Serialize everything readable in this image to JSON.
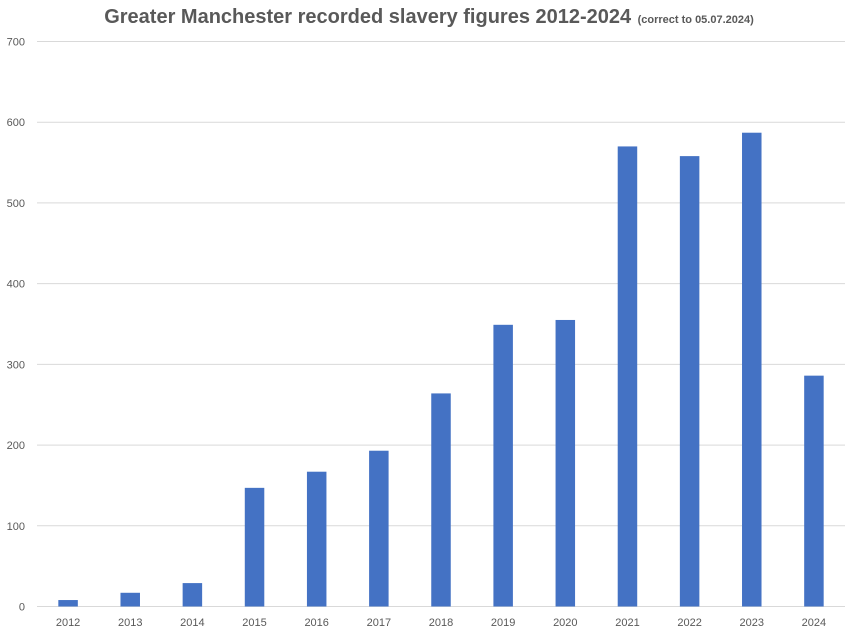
{
  "chart_data": {
    "type": "bar",
    "title": "Greater Manchester recorded slavery figures 2012-2024",
    "subtitle": "(correct to 05.07.2024)",
    "xlabel": "",
    "ylabel": "",
    "categories": [
      "2012",
      "2013",
      "2014",
      "2015",
      "2016",
      "2017",
      "2018",
      "2019",
      "2020",
      "2021",
      "2022",
      "2023",
      "2024"
    ],
    "values": [
      8,
      17,
      29,
      147,
      167,
      193,
      264,
      349,
      355,
      570,
      558,
      587,
      286
    ],
    "ylim": [
      0,
      700
    ],
    "yticks": [
      0,
      100,
      200,
      300,
      400,
      500,
      600,
      700
    ],
    "grid": true,
    "legend": "none",
    "colors": {
      "bar": "#4472C4",
      "grid": "#D9D9D9",
      "text": "#595959"
    }
  }
}
